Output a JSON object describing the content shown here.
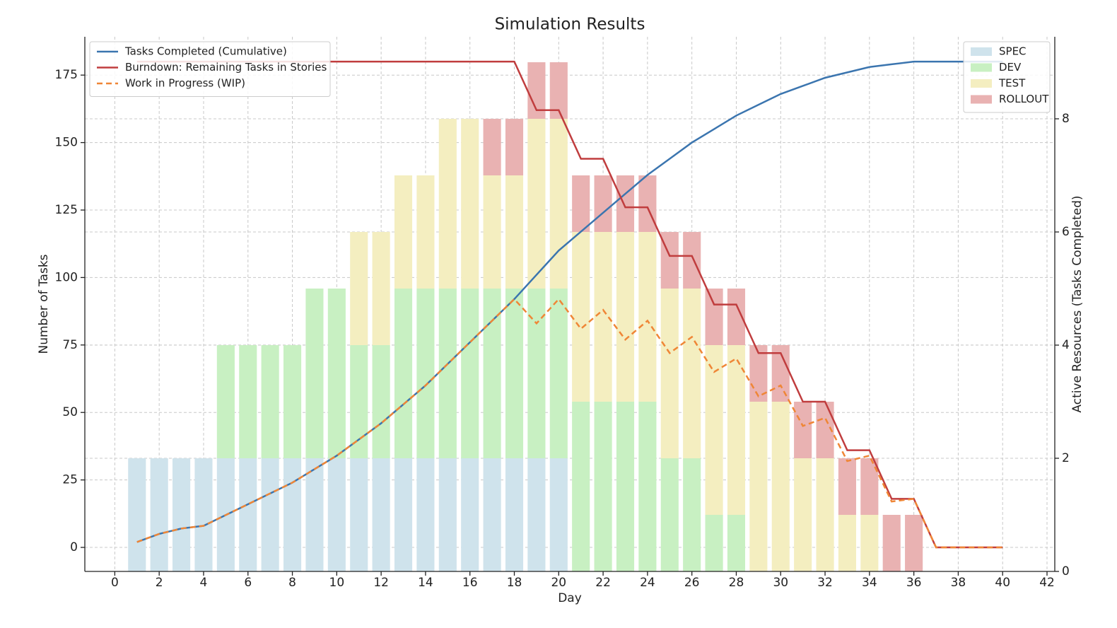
{
  "chart_data": {
    "type": "combo",
    "title": "Simulation Results",
    "x_label": "Day",
    "y_label": "Number of Tasks",
    "y2_label": "Active Resources (Tasks Completed)",
    "x": [
      1,
      2,
      3,
      4,
      5,
      6,
      7,
      8,
      9,
      10,
      11,
      12,
      13,
      14,
      15,
      16,
      17,
      18,
      19,
      20,
      21,
      22,
      23,
      24,
      25,
      26,
      27,
      28,
      29,
      30,
      31,
      32,
      33,
      34,
      35,
      36,
      37,
      38,
      39,
      40
    ],
    "xlim": [
      -1.35,
      42.35
    ],
    "xticks": [
      0,
      2,
      4,
      6,
      8,
      10,
      12,
      14,
      16,
      18,
      20,
      22,
      24,
      26,
      28,
      30,
      32,
      34,
      36,
      38,
      40,
      42
    ],
    "ylim": [
      -8.9,
      189.2
    ],
    "yticks": [
      0,
      25,
      50,
      75,
      100,
      125,
      150,
      175
    ],
    "y2lim": [
      0,
      9.45
    ],
    "y2ticks": [
      0,
      2,
      4,
      6,
      8
    ],
    "grid": true,
    "line_legend": "upper left",
    "bar_legend": "upper right",
    "series": [
      {
        "name": "SPEC",
        "type": "bar",
        "axis": "y2",
        "color": "#cfe3ec",
        "values": [
          2,
          2,
          2,
          2,
          2,
          2,
          2,
          2,
          2,
          2,
          2,
          2,
          2,
          2,
          2,
          2,
          2,
          2,
          2,
          2,
          0,
          0,
          0,
          0,
          0,
          0,
          0,
          0,
          0,
          0,
          0,
          0,
          0,
          0,
          0,
          0,
          0,
          0,
          0,
          0
        ]
      },
      {
        "name": "DEV",
        "type": "bar",
        "axis": "y2",
        "color": "#c8f0c2",
        "values": [
          0,
          0,
          0,
          0,
          2,
          2,
          2,
          2,
          3,
          3,
          2,
          2,
          3,
          3,
          3,
          3,
          3,
          3,
          3,
          3,
          3,
          3,
          3,
          3,
          2,
          2,
          1,
          1,
          0,
          0,
          0,
          0,
          0,
          0,
          0,
          0,
          0,
          0,
          0,
          0
        ]
      },
      {
        "name": "TEST",
        "type": "bar",
        "axis": "y2",
        "color": "#f4eec0",
        "values": [
          0,
          0,
          0,
          0,
          0,
          0,
          0,
          0,
          0,
          0,
          2,
          2,
          2,
          2,
          3,
          3,
          2,
          2,
          3,
          3,
          3,
          3,
          3,
          3,
          3,
          3,
          3,
          3,
          3,
          3,
          2,
          2,
          1,
          1,
          0,
          0,
          0,
          0,
          0,
          0
        ]
      },
      {
        "name": "ROLLOUT",
        "type": "bar",
        "axis": "y2",
        "color": "#e9b2b2",
        "values": [
          0,
          0,
          0,
          0,
          0,
          0,
          0,
          0,
          0,
          0,
          0,
          0,
          0,
          0,
          0,
          0,
          1,
          1,
          1,
          1,
          1,
          1,
          1,
          1,
          1,
          1,
          1,
          1,
          1,
          1,
          1,
          1,
          1,
          1,
          1,
          1,
          0,
          0,
          0,
          0
        ]
      },
      {
        "name": "Tasks Completed (Cumulative)",
        "type": "line",
        "axis": "y",
        "color": "#3b75af",
        "dashed": false,
        "values": [
          2,
          5,
          7,
          8,
          12,
          16,
          20,
          24,
          29,
          34,
          40,
          46,
          53,
          60,
          68,
          76,
          84,
          92,
          101,
          110,
          117,
          124,
          131,
          138,
          144,
          150,
          155,
          160,
          164,
          168,
          171,
          174,
          176,
          178,
          179,
          180,
          180,
          180,
          180,
          180
        ]
      },
      {
        "name": "Burndown: Remaining Tasks in Stories",
        "type": "line",
        "axis": "y",
        "color": "#c03d3e",
        "dashed": false,
        "values": [
          180,
          180,
          180,
          180,
          180,
          180,
          180,
          180,
          180,
          180,
          180,
          180,
          180,
          180,
          180,
          180,
          180,
          180,
          162,
          162,
          144,
          144,
          126,
          126,
          108,
          108,
          90,
          90,
          72,
          72,
          54,
          54,
          36,
          36,
          18,
          18,
          0,
          0,
          0,
          0
        ]
      },
      {
        "name": "Work in Progress (WIP)",
        "type": "line",
        "axis": "y",
        "color": "#ef8636",
        "dashed": true,
        "values": [
          2,
          5,
          7,
          8,
          12,
          16,
          20,
          24,
          29,
          34,
          40,
          46,
          53,
          60,
          68,
          76,
          84,
          92,
          83,
          92,
          81,
          88,
          77,
          84,
          72,
          78,
          65,
          70,
          56,
          60,
          45,
          48,
          32,
          34,
          17,
          18,
          0,
          0,
          0,
          0
        ]
      }
    ]
  }
}
